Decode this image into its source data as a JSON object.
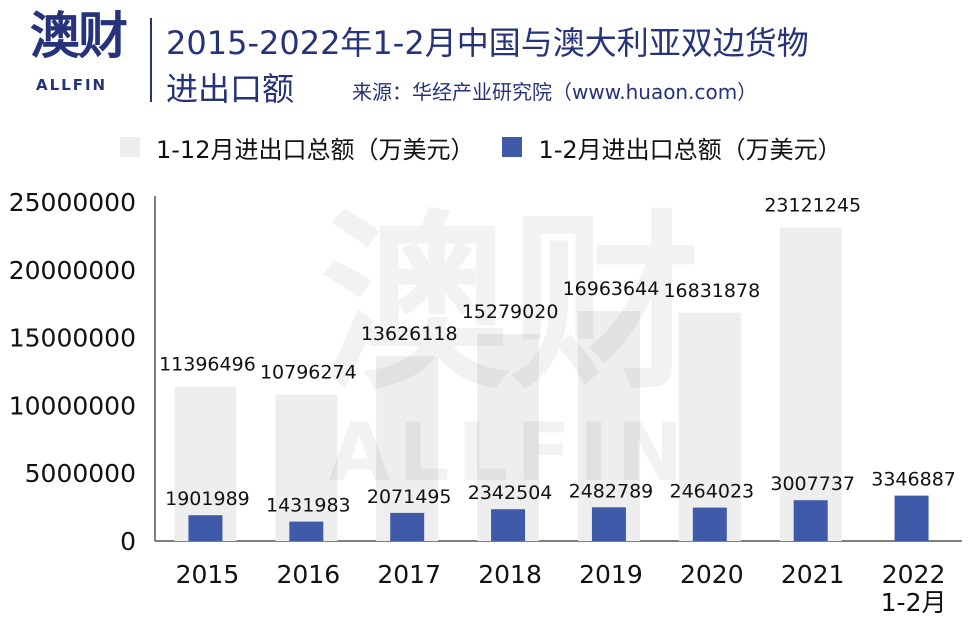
{
  "header": {
    "logo_zh": "澳财",
    "logo_en": "ALLFIN",
    "title_line1": "2015-2022年1-2月中国与澳大利亚双边货物",
    "title_line2": "进出口额",
    "source": "来源：华经产业研究院（www.huaon.com）"
  },
  "watermark": {
    "text_zh": "澳财",
    "text_en": "ALLFIN"
  },
  "colors": {
    "brand_navy": "#26337a",
    "full_year_bar": "#eeeeee",
    "jan_feb_bar": "#3f5aa8",
    "axis": "#555555"
  },
  "chart_data": {
    "type": "bar",
    "categories": [
      "2015",
      "2016",
      "2017",
      "2018",
      "2019",
      "2020",
      "2021",
      "2022\n1-2月"
    ],
    "series": [
      {
        "name": "1-12月进出口总额（万美元）",
        "color": "#eeeeee",
        "values": [
          11396496,
          10796274,
          13626118,
          15279020,
          16963644,
          16831878,
          23121245,
          null
        ],
        "labels": [
          "11396496",
          "10796274",
          "13626118",
          "15279020",
          "16963644",
          "16831878",
          "23121245",
          ""
        ]
      },
      {
        "name": "1-2月进出口总额（万美元）",
        "color": "#3f5aa8",
        "values": [
          1901989,
          1431983,
          2071495,
          2342504,
          2482789,
          2464023,
          3007737,
          3346887
        ],
        "labels": [
          "1901989",
          "1431983",
          "2071495",
          "2342504",
          "2482789",
          "2464023",
          "3007737",
          "3346887"
        ]
      }
    ],
    "ylim": [
      0,
      25000000
    ],
    "yticks": [
      "0",
      "5000000",
      "10000000",
      "15000000",
      "20000000",
      "25000000"
    ],
    "ytick_values": [
      0,
      5000000,
      10000000,
      15000000,
      20000000,
      25000000
    ],
    "grid": false,
    "legend": "top"
  }
}
